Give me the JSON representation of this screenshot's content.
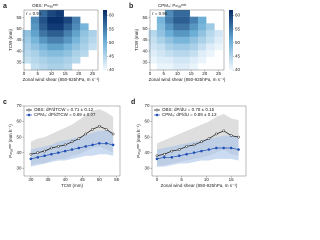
{
  "chart_data": [
    {
      "type": "heatmap",
      "label": "a",
      "title": "OBS: Pₘₐₓᵉˣᵗʳ",
      "annotation": "r = 0.91",
      "xlabel": "Zonal wind shear (850-925hPa, m s⁻¹)",
      "ylabel": "TCW (mm)",
      "x": [
        1,
        4,
        7,
        10,
        13,
        16,
        19,
        22,
        25
      ],
      "y": [
        33,
        36,
        39,
        42,
        45,
        48,
        51,
        54,
        57
      ],
      "z": [
        [
          null,
          44,
          45,
          46,
          46,
          45,
          null,
          null,
          null
        ],
        [
          44,
          45,
          46,
          47,
          47,
          46,
          45,
          null,
          null
        ],
        [
          45,
          46,
          48,
          49,
          49,
          48,
          46,
          45,
          null
        ],
        [
          46,
          48,
          50,
          52,
          52,
          50,
          48,
          46,
          44
        ],
        [
          47,
          50,
          53,
          55,
          55,
          53,
          50,
          47,
          45
        ],
        [
          48,
          52,
          56,
          58,
          58,
          55,
          52,
          48,
          46
        ],
        [
          null,
          53,
          58,
          61,
          61,
          58,
          54,
          50,
          null
        ],
        [
          null,
          54,
          59,
          62,
          62,
          60,
          55,
          null,
          null
        ],
        [
          null,
          null,
          57,
          60,
          61,
          null,
          null,
          null,
          null
        ]
      ],
      "colormap": [
        "#f7fbff",
        "#6baed6",
        "#08306b"
      ],
      "zlim": [
        40,
        62
      ],
      "zticks": [
        40,
        45,
        50,
        55,
        60
      ],
      "xlim": [
        0,
        27
      ],
      "ylim": [
        31.5,
        58.5
      ],
      "xticks": [
        0,
        5,
        10,
        15,
        20,
        25
      ],
      "yticks": [
        35,
        40,
        45,
        50,
        55
      ]
    },
    {
      "type": "heatmap",
      "label": "b",
      "title": "CPM₄: Pₘₐₓᵉˣᵗʳ",
      "annotation": "r = 0.95",
      "xlabel": "Zonal wind shear (850-925hPa, m s⁻¹)",
      "ylabel": "TCW (mm)",
      "x": [
        1,
        4,
        7,
        10,
        13,
        16,
        19,
        22,
        25
      ],
      "y": [
        33,
        36,
        39,
        42,
        45,
        48,
        51,
        54,
        57
      ],
      "z": [
        [
          null,
          41,
          41,
          42,
          42,
          41,
          null,
          null,
          null
        ],
        [
          41,
          42,
          42,
          43,
          43,
          42,
          41,
          null,
          null
        ],
        [
          42,
          43,
          44,
          45,
          45,
          44,
          42,
          41,
          null
        ],
        [
          43,
          44,
          46,
          47,
          47,
          46,
          44,
          42,
          41
        ],
        [
          44,
          46,
          48,
          50,
          50,
          48,
          46,
          44,
          42
        ],
        [
          45,
          48,
          51,
          53,
          53,
          51,
          48,
          45,
          43
        ],
        [
          null,
          49,
          53,
          56,
          56,
          53,
          50,
          47,
          null
        ],
        [
          null,
          50,
          55,
          58,
          58,
          55,
          51,
          null,
          null
        ],
        [
          null,
          null,
          54,
          57,
          57,
          null,
          null,
          null,
          null
        ]
      ],
      "colormap": [
        "#f7fbff",
        "#6baed6",
        "#08306b"
      ],
      "zlim": [
        40,
        62
      ],
      "zticks": [
        40,
        45,
        50,
        55,
        60
      ],
      "xlim": [
        0,
        27
      ],
      "ylim": [
        31.5,
        58.5
      ],
      "xticks": [
        0,
        5,
        10,
        15,
        20,
        25
      ],
      "yticks": [
        35,
        40,
        45,
        50,
        55
      ]
    },
    {
      "type": "line",
      "label": "c",
      "xlabel": "TCW (mm)",
      "ylabel": "Pₘₐₓᵉˣᵗʳ (mm h⁻¹)",
      "xlim": [
        28,
        56
      ],
      "ylim": [
        25,
        70
      ],
      "xticks": [
        30,
        35,
        40,
        45,
        50,
        55
      ],
      "yticks": [
        30,
        40,
        50,
        60,
        70
      ],
      "series": [
        {
          "name": "OBS: dP/dTCW = 0.71 ± 0.12",
          "color": "#111111",
          "band_color": "#c8c8c8",
          "marker": "open",
          "x": [
            30,
            32,
            34,
            36,
            38,
            40,
            42,
            44,
            46,
            48,
            50,
            52,
            54
          ],
          "values": [
            39,
            40,
            41,
            43,
            44,
            45,
            47,
            49,
            52,
            55,
            57,
            55,
            52
          ],
          "band_low": [
            32,
            33,
            33,
            35,
            36,
            36,
            38,
            39,
            41,
            43,
            44,
            42,
            40
          ],
          "band_high": [
            47,
            49,
            50,
            52,
            54,
            56,
            58,
            61,
            64,
            67,
            68,
            66,
            63
          ]
        },
        {
          "name": "CPM₄: dP/dTCW = 0.69 ± 0.07",
          "color": "#1f4fb4",
          "band_color": "#a9c3ea",
          "marker": "filled",
          "x": [
            30,
            32,
            34,
            36,
            38,
            40,
            42,
            44,
            46,
            48,
            50,
            52,
            54
          ],
          "values": [
            36,
            37,
            38,
            39,
            40,
            41,
            42,
            43,
            44,
            45,
            46,
            46,
            45
          ],
          "band_low": [
            31,
            32,
            33,
            34,
            35,
            35,
            36,
            37,
            38,
            38,
            39,
            39,
            38
          ],
          "band_high": [
            42,
            43,
            44,
            45,
            47,
            48,
            49,
            50,
            51,
            53,
            54,
            54,
            53
          ]
        }
      ]
    },
    {
      "type": "line",
      "label": "d",
      "xlabel": "Zonal wind shear (850-925hPa, m s⁻¹)",
      "ylabel": "Pₘₐₓᵉˣᵗʳ (mm h⁻¹)",
      "xlim": [
        -1,
        18
      ],
      "ylim": [
        25,
        70
      ],
      "xticks": [
        0,
        5,
        10,
        15
      ],
      "yticks": [
        30,
        40,
        50,
        60,
        70
      ],
      "series": [
        {
          "name": "OBS: dP/dU = 0.78 ± 0.15",
          "color": "#111111",
          "band_color": "#c8c8c8",
          "marker": "open",
          "x": [
            0,
            1.5,
            3,
            4.5,
            6,
            7.5,
            9,
            10.5,
            12,
            13.5,
            15,
            16.5
          ],
          "values": [
            38,
            39,
            41,
            42,
            44,
            45,
            47,
            49,
            52,
            54,
            51,
            50
          ],
          "band_low": [
            31,
            32,
            33,
            34,
            35,
            36,
            37,
            38,
            40,
            42,
            39,
            38
          ],
          "band_high": [
            46,
            48,
            50,
            52,
            54,
            56,
            58,
            60,
            63,
            65,
            62,
            61
          ]
        },
        {
          "name": "CPM₄: dP/dU = 0.89 ± 0.13",
          "color": "#1f4fb4",
          "band_color": "#a9c3ea",
          "marker": "filled",
          "x": [
            0,
            1.5,
            3,
            4.5,
            6,
            7.5,
            9,
            10.5,
            12,
            13.5,
            15,
            16.5
          ],
          "values": [
            36,
            37,
            37,
            38,
            39,
            40,
            41,
            42,
            43,
            43,
            43,
            42
          ],
          "band_low": [
            31,
            31,
            32,
            33,
            33,
            34,
            35,
            35,
            36,
            36,
            36,
            35
          ],
          "band_high": [
            42,
            43,
            44,
            45,
            46,
            47,
            48,
            49,
            50,
            51,
            51,
            50
          ]
        }
      ]
    }
  ]
}
